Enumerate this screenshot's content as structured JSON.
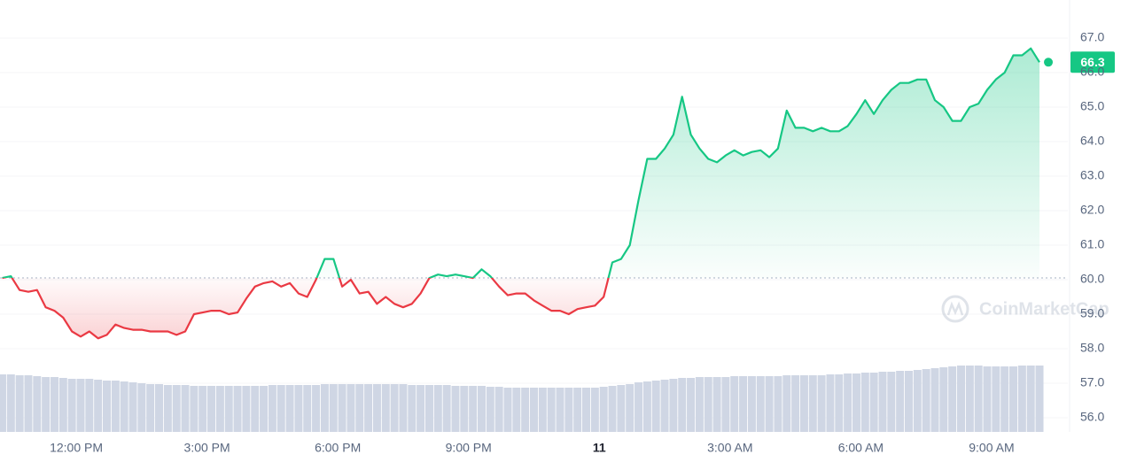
{
  "chart_data": {
    "type": "line",
    "watermark": "CoinMarketCap",
    "last_label": "66.3",
    "color_up": "#16c784",
    "color_down": "#ea3943",
    "volume_color": "#cfd6e4",
    "ylim": [
      55.6,
      68.1
    ],
    "yticks": [
      {
        "value": 56,
        "label": "56.0"
      },
      {
        "value": 57,
        "label": "57.0"
      },
      {
        "value": 58,
        "label": "58.0"
      },
      {
        "value": 59,
        "label": "59.0"
      },
      {
        "value": 60,
        "label": "60.0"
      },
      {
        "value": 61,
        "label": "61.0"
      },
      {
        "value": 62,
        "label": "62.0"
      },
      {
        "value": 63,
        "label": "63.0"
      },
      {
        "value": 64,
        "label": "64.0"
      },
      {
        "value": 65,
        "label": "65.0"
      },
      {
        "value": 66,
        "label": "66.0"
      },
      {
        "value": 67,
        "label": "67.0"
      }
    ],
    "xlim": [
      10.25,
      34.75
    ],
    "xticks": [
      {
        "value": 12,
        "label": "12:00 PM"
      },
      {
        "value": 15,
        "label": "3:00 PM"
      },
      {
        "value": 18,
        "label": "6:00 PM"
      },
      {
        "value": 21,
        "label": "9:00 PM"
      },
      {
        "value": 24,
        "label": "11"
      },
      {
        "value": 27,
        "label": "3:00 AM"
      },
      {
        "value": 30,
        "label": "6:00 AM"
      },
      {
        "value": 33,
        "label": "9:00 AM"
      }
    ],
    "x": [
      10.3,
      10.5,
      10.7,
      10.9,
      11.1,
      11.3,
      11.5,
      11.7,
      11.9,
      12.1,
      12.3,
      12.5,
      12.7,
      12.9,
      13.1,
      13.3,
      13.5,
      13.7,
      13.9,
      14.1,
      14.3,
      14.5,
      14.7,
      14.9,
      15.1,
      15.3,
      15.5,
      15.7,
      15.9,
      16.1,
      16.3,
      16.5,
      16.7,
      16.9,
      17.1,
      17.3,
      17.5,
      17.7,
      17.9,
      18.1,
      18.3,
      18.5,
      18.7,
      18.9,
      19.1,
      19.3,
      19.5,
      19.7,
      19.9,
      20.1,
      20.3,
      20.5,
      20.7,
      20.9,
      21.1,
      21.3,
      21.5,
      21.7,
      21.9,
      22.1,
      22.3,
      22.5,
      22.7,
      22.9,
      23.1,
      23.3,
      23.5,
      23.7,
      23.9,
      24.1,
      24.3,
      24.5,
      24.7,
      24.9,
      25.1,
      25.3,
      25.5,
      25.7,
      25.9,
      26.1,
      26.3,
      26.5,
      26.7,
      26.9,
      27.1,
      27.3,
      27.5,
      27.7,
      27.9,
      28.1,
      28.3,
      28.5,
      28.7,
      28.9,
      29.1,
      29.3,
      29.5,
      29.7,
      29.9,
      30.1,
      30.3,
      30.5,
      30.7,
      30.9,
      31.1,
      31.3,
      31.5,
      31.7,
      31.9,
      32.1,
      32.3,
      32.5,
      32.7,
      32.9,
      33.1,
      33.3,
      33.5,
      33.7,
      33.9,
      34.1
    ],
    "values": [
      60.05,
      60.1,
      59.7,
      59.65,
      59.7,
      59.2,
      59.1,
      58.9,
      58.5,
      58.35,
      58.5,
      58.3,
      58.4,
      58.7,
      58.6,
      58.55,
      58.55,
      58.5,
      58.5,
      58.5,
      58.4,
      58.5,
      59.0,
      59.05,
      59.1,
      59.1,
      59.0,
      59.05,
      59.45,
      59.8,
      59.9,
      59.95,
      59.8,
      59.9,
      59.6,
      59.5,
      60.0,
      60.6,
      60.6,
      59.8,
      60.0,
      59.6,
      59.65,
      59.3,
      59.5,
      59.3,
      59.2,
      59.3,
      59.6,
      60.05,
      60.15,
      60.1,
      60.15,
      60.1,
      60.05,
      60.3,
      60.1,
      59.8,
      59.55,
      59.6,
      59.6,
      59.4,
      59.25,
      59.1,
      59.1,
      59.0,
      59.15,
      59.2,
      59.25,
      59.5,
      60.5,
      60.6,
      61.0,
      62.3,
      63.5,
      63.5,
      63.8,
      64.2,
      65.3,
      64.2,
      63.8,
      63.5,
      63.4,
      63.6,
      63.75,
      63.6,
      63.7,
      63.75,
      63.55,
      63.8,
      64.9,
      64.4,
      64.4,
      64.3,
      64.4,
      64.3,
      64.3,
      64.45,
      64.8,
      65.2,
      64.8,
      65.2,
      65.5,
      65.7,
      65.7,
      65.8,
      65.8,
      65.2,
      65.0,
      64.6,
      64.6,
      65.0,
      65.1,
      65.5,
      65.8,
      66.0,
      66.5,
      66.5,
      66.7,
      66.3
    ],
    "volume": [
      65,
      65,
      64,
      64,
      63,
      62,
      62,
      61,
      60,
      60,
      60,
      59,
      58,
      58,
      57,
      56,
      55,
      54,
      54,
      53,
      53,
      53,
      52,
      52,
      52,
      52,
      52,
      52,
      52,
      52,
      52,
      53,
      53,
      53,
      53,
      53,
      53,
      54,
      54,
      54,
      54,
      54,
      54,
      54,
      54,
      54,
      54,
      53,
      53,
      53,
      53,
      53,
      52,
      52,
      52,
      52,
      51,
      51,
      50,
      50,
      50,
      50,
      50,
      50,
      50,
      50,
      50,
      50,
      50,
      51,
      52,
      53,
      54,
      56,
      57,
      58,
      59,
      60,
      61,
      61,
      62,
      62,
      62,
      62,
      63,
      63,
      63,
      63,
      63,
      63,
      64,
      64,
      64,
      64,
      64,
      65,
      65,
      66,
      66,
      67,
      67,
      68,
      68,
      69,
      69,
      70,
      71,
      72,
      73,
      74,
      75,
      75,
      75,
      74,
      74,
      74,
      74,
      75,
      75,
      75
    ]
  }
}
